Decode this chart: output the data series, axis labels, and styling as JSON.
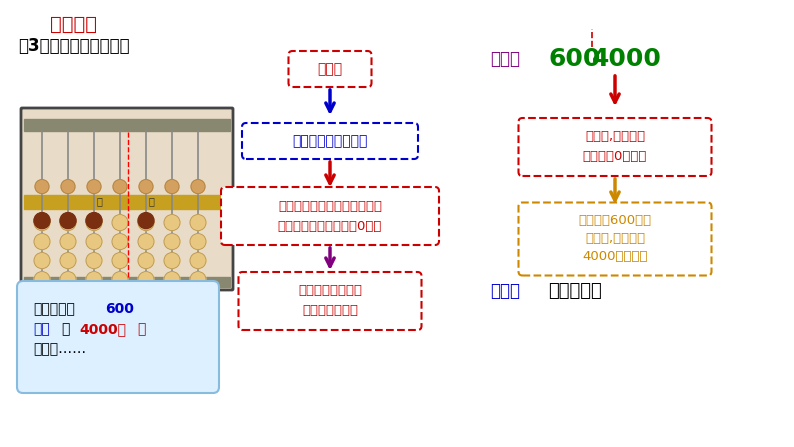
{
  "title": "知识讲解",
  "subtitle": "（3）读、写各数的方法",
  "title_color": "#cc0000",
  "subtitle_color": "#000000",
  "bg_color": "#ffffff",
  "write_label": "写作：",
  "write_label_color": "#800080",
  "number_600_color": "#008000",
  "number_4000_color": "#008000",
  "box1_text": "写数时",
  "box2_text": "对应数位顺序表去写",
  "box3_line1": "哪个数位上一个计数单位也没",
  "box3_line2": "有，就在那个数位上写0占位",
  "box4_line1": "先写万级上的数，",
  "box4_line2": "再写个级上的数",
  "right_box1_line1": "读数时,万级和个",
  "right_box1_line2": "级末尾的0都不读",
  "right_box2_line1": "万级上的600读作",
  "right_box2_line2": "六百万,个级上的",
  "right_box2_line3": "4000读作四千",
  "read_label": "读作：",
  "read_label_color": "#0000cc",
  "read_value": "六百万四千",
  "read_value_color": "#000000",
  "figw": 7.94,
  "figh": 4.47,
  "dpi": 100
}
